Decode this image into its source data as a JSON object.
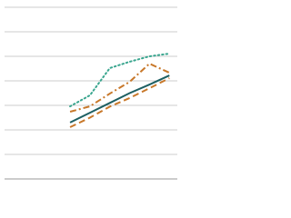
{
  "chart_data": {
    "type": "line",
    "x": [
      0,
      1,
      2,
      3,
      4,
      5
    ],
    "xlim": [
      -3.3,
      5.4
    ],
    "ylim": [
      0,
      7
    ],
    "yticks": [
      0,
      1,
      2,
      3,
      4,
      5,
      6,
      7
    ],
    "grid": true,
    "series": [
      {
        "color": "#3aa68f",
        "dash": "dotted",
        "values": [
          2.96,
          3.41,
          4.52,
          4.78,
          5.0,
          5.11
        ]
      },
      {
        "color": "#c8782a",
        "dash": "dashdot",
        "values": [
          2.74,
          2.96,
          3.48,
          3.96,
          4.7,
          4.33
        ]
      },
      {
        "color": "#1d5f62",
        "dash": "solid",
        "values": [
          2.3,
          2.7,
          3.1,
          3.5,
          3.85,
          4.22
        ]
      },
      {
        "color": "#c8782a",
        "dash": "dashed",
        "values": [
          2.11,
          2.5,
          2.95,
          3.3,
          3.7,
          4.11
        ]
      }
    ]
  }
}
